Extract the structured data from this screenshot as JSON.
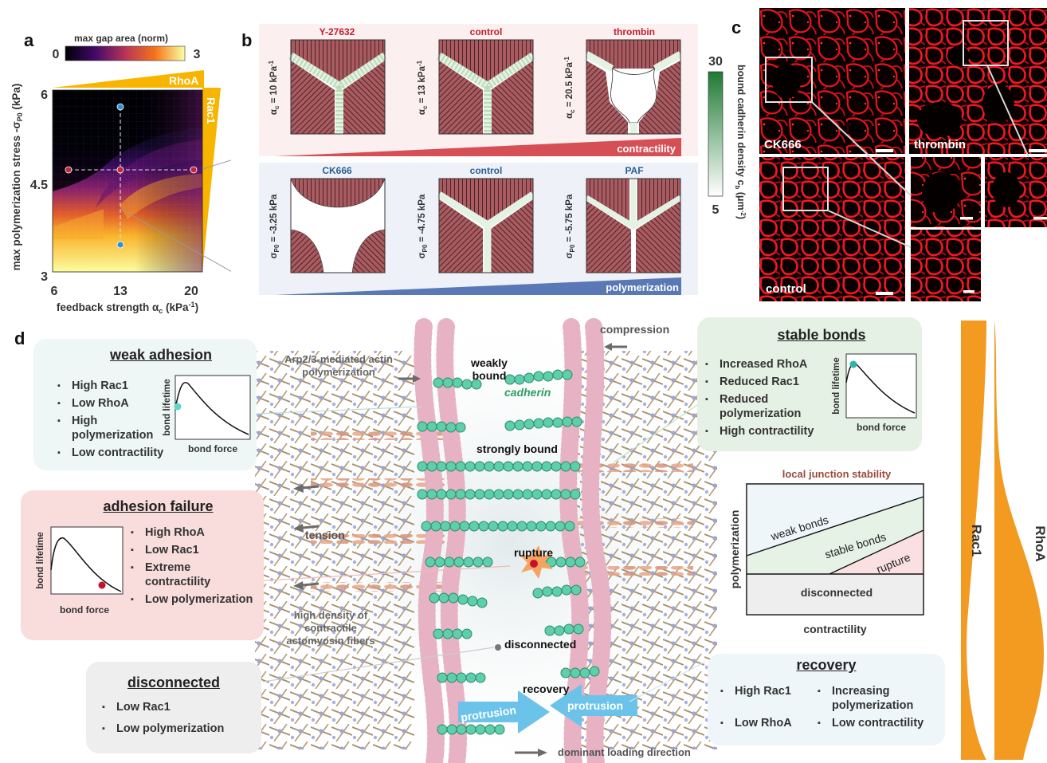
{
  "panels": {
    "a": "a",
    "b": "b",
    "c": "c",
    "d": "d"
  },
  "panel_a": {
    "colorbar_title": "max gap area (norm)",
    "colorbar_min": "0",
    "colorbar_max": "3",
    "rhoa_label": "RhoA",
    "rac1_label": "Rac1",
    "ylabel": "max polymerization stress -σ",
    "ylabel_sub": "P0",
    "ylabel_unit": " (kPa)",
    "xlabel": "feedback strength α",
    "xlabel_sub": "c",
    "xlabel_unit": " (kPa",
    "xlabel_sup": "-1",
    "xlabel_close": ")",
    "xticks": [
      "6",
      "13",
      "20"
    ],
    "yticks": [
      "3",
      "4.5",
      "6"
    ],
    "colors": {
      "red_point": "#c0283a",
      "blue_point": "#2e90d8",
      "rhoa": "#f7b500"
    }
  },
  "panel_b": {
    "top_labels": [
      "Y-27632",
      "control",
      "thrombin"
    ],
    "top_params": [
      {
        "sym": "α",
        "sub": "c",
        "rest": " = 10 kPa",
        "sup": "-1"
      },
      {
        "sym": "α",
        "sub": "c",
        "rest": " = 13 kPa",
        "sup": "-1"
      },
      {
        "sym": "α",
        "sub": "c",
        "rest": " = 20.5 kPa",
        "sup": "-1"
      }
    ],
    "contractility_label": "contractility",
    "bottom_labels": [
      "CK666",
      "control",
      "PAF"
    ],
    "bottom_params": [
      {
        "sym": "σ",
        "sub": "P0",
        "rest": " = -3.25 kPa"
      },
      {
        "sym": "σ",
        "sub": "P0",
        "rest": " = -4.75 kPa"
      },
      {
        "sym": "σ",
        "sub": "P0",
        "rest": " = -5.75 kPa"
      }
    ],
    "polymerization_label": "polymerization",
    "cbar_max": "30",
    "cbar_min": "5",
    "cbar_label": "bound cadherin density c",
    "cbar_label_sub": "b",
    "cbar_label_unit": " (μm",
    "cbar_label_sup": "-2",
    "cbar_label_close": ")",
    "colors": {
      "red_title": "#c01f2f",
      "blue_title": "#2c5d92",
      "contract": "#d64f55",
      "poly": "#5a78b5"
    }
  },
  "panel_c": {
    "captions": [
      "CK666",
      "thrombin",
      "control"
    ]
  },
  "panel_d": {
    "weak": {
      "title": "weak adhesion",
      "items": [
        "High Rac1",
        "Low RhoA",
        "High polymerization",
        "Low contractility"
      ],
      "ylabel": "bond lifetime",
      "xlabel": "bond force"
    },
    "failure": {
      "title": "adhesion failure",
      "items": [
        "High RhoA",
        "Low Rac1",
        "Extreme contractility",
        "Low polymerization"
      ],
      "ylabel": "bond lifetime",
      "xlabel": "bond force"
    },
    "disconnected": {
      "title": "disconnected",
      "items": [
        "Low Rac1",
        "Low polymerization"
      ]
    },
    "stable": {
      "title": "stable bonds",
      "items": [
        "Increased RhoA",
        "Reduced Rac1",
        "Reduced polymerization",
        "High contractility"
      ],
      "ylabel": "bond lifetime",
      "xlabel": "bond force"
    },
    "recovery": {
      "title": "recovery",
      "items_left": [
        "High Rac1",
        "Low RhoA"
      ],
      "items_right": [
        "Increasing polymerization",
        "Low contractility"
      ]
    },
    "phase": {
      "title": "local junction stability",
      "ylabel": "polymerization",
      "xlabel": "contractility",
      "regions": [
        "weak bonds",
        "stable bonds",
        "rupture",
        "disconnected"
      ]
    },
    "scene": {
      "compression": "compression",
      "arp": "Arp2/3-mediated actin polymerization",
      "weakly": "weakly bound",
      "cadherin": "cadherin",
      "strongly": "strongly bound",
      "tension": "tension",
      "rupture": "rupture",
      "density": "high density of contractile actomyosin fibers",
      "disconnected": "disconnected",
      "recovery": "recovery",
      "protrusion": "protrusion",
      "dominant": "dominant loading direction"
    },
    "side": {
      "rac1": "Rac1",
      "rhoa": "RhoA"
    },
    "colors": {
      "weak_bg": "#eef6f6",
      "failure_bg": "#f9dcdc",
      "disc_bg": "#eeeeee",
      "stable_bg": "#e6f1e6",
      "recovery_bg": "#eef6fa",
      "orange": "#f39a21",
      "cadherin": "#2e9e63",
      "protrusion": "#6cc3ea"
    }
  }
}
